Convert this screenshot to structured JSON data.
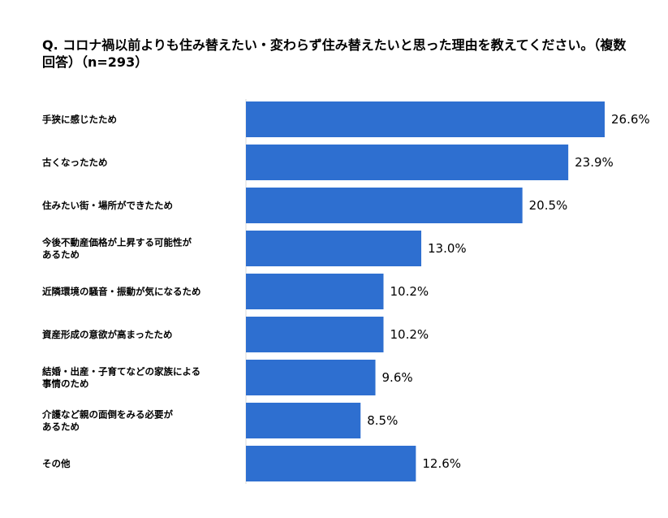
{
  "chart_data": {
    "type": "bar",
    "orientation": "horizontal",
    "title": "Q. コロナ禍以前よりも住み替えたい・変わらず住み替えたいと思った理由を教えてください。（複数回答）（n=293）",
    "categories": [
      "手狭に感じたため",
      "古くなったため",
      "住みたい街・場所ができたため",
      "今後不動産価格が上昇する可能性があるため",
      "近隣環境の騒音・振動が気になるため",
      "資産形成の意欲が高まったため",
      "結婚・出産・子育てなどの家族による事情のため",
      "介護など親の面倒をみる必要があるため",
      "その他"
    ],
    "category_lines": [
      [
        "手狭に感じたため"
      ],
      [
        "古くなったため"
      ],
      [
        "住みたい街・場所ができたため"
      ],
      [
        "今後不動産価格が上昇する可能性が",
        "あるため"
      ],
      [
        "近隣環境の騒音・振動が気になるため"
      ],
      [
        "資産形成の意欲が高まったため"
      ],
      [
        "結婚・出産・子育てなどの家族による",
        "事情のため"
      ],
      [
        "介護など親の面倒をみる必要が",
        "あるため"
      ],
      [
        "その他"
      ]
    ],
    "values": [
      26.6,
      23.9,
      20.5,
      13.0,
      10.2,
      10.2,
      9.6,
      8.5,
      12.6
    ],
    "value_labels": [
      "26.6%",
      "23.9%",
      "20.5%",
      "13.0%",
      "10.2%",
      "10.2%",
      "9.6%",
      "8.5%",
      "12.6%"
    ],
    "unit": "%",
    "bar_color": "#2e6fd0",
    "grid": false,
    "legend": "none"
  }
}
